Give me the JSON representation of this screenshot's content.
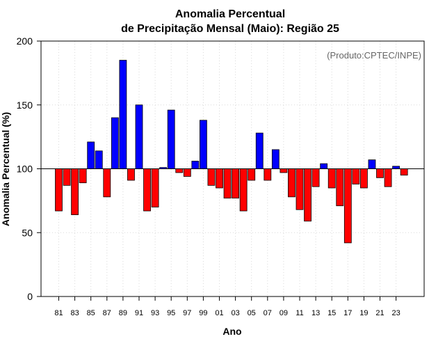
{
  "chart_data": {
    "type": "bar",
    "title_line1": "Anomalia Percentual",
    "title_line2": "de Precipitação Mensal (Maio): Região 25",
    "xlabel": "Ano",
    "ylabel": "Anomalia Percentual (%)",
    "credit": "(Produto:CPTEC/INPE)",
    "baseline": 100,
    "ylim": [
      0,
      200
    ],
    "yticks": [
      0,
      50,
      100,
      150,
      200
    ],
    "categories": [
      "81",
      "82",
      "83",
      "84",
      "85",
      "86",
      "87",
      "88",
      "89",
      "90",
      "91",
      "92",
      "93",
      "94",
      "95",
      "96",
      "97",
      "98",
      "99",
      "00",
      "01",
      "02",
      "03",
      "04",
      "05",
      "06",
      "07",
      "08",
      "09",
      "10",
      "11",
      "12",
      "13",
      "14",
      "15",
      "16",
      "17",
      "18",
      "19",
      "20",
      "21",
      "22",
      "23",
      "24"
    ],
    "xtick_labels": [
      "81",
      "83",
      "85",
      "87",
      "89",
      "91",
      "93",
      "95",
      "97",
      "99",
      "01",
      "03",
      "05",
      "07",
      "09",
      "11",
      "13",
      "15",
      "17",
      "19",
      "21",
      "23"
    ],
    "values": [
      67,
      87,
      64,
      89,
      121,
      114,
      78,
      140,
      185,
      91,
      150,
      67,
      70,
      101,
      146,
      97,
      94,
      106,
      138,
      87,
      85,
      77,
      77,
      67,
      91,
      128,
      91,
      115,
      97,
      78,
      68,
      59,
      86,
      104,
      85,
      71,
      42,
      88,
      85,
      107,
      93,
      86,
      102,
      95
    ],
    "colors": {
      "above": "#0000ff",
      "below": "#ff0000"
    }
  }
}
